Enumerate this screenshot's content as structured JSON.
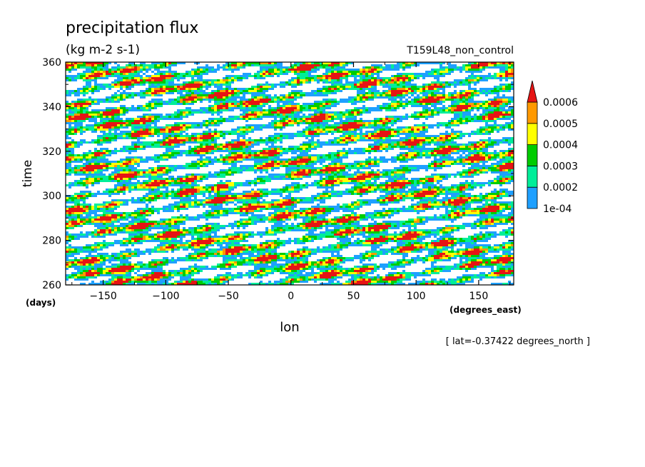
{
  "chart_data": {
    "type": "heatmap",
    "title": "precipitation flux",
    "subtitle": "(kg m-2 s-1)",
    "run_label": "T159L48_non_control",
    "xlabel": "lon",
    "x_units": "(degrees_east)",
    "ylabel": "time",
    "y_units": "(days)",
    "xlim": [
      -180,
      178
    ],
    "ylim": [
      260,
      360
    ],
    "x_ticks": [
      -150,
      -100,
      -50,
      0,
      50,
      100,
      150
    ],
    "y_ticks": [
      260,
      280,
      300,
      320,
      340,
      360
    ],
    "footnote": "[ lat=-0.37422 degrees_north ]",
    "colorbar": {
      "levels": [
        "1e-04",
        "0.0002",
        "0.0003",
        "0.0004",
        "0.0005",
        "0.0006"
      ],
      "colors": [
        "#1ea0ff",
        "#00ee99",
        "#00cc00",
        "#ffff00",
        "#ff9900",
        "#e61414"
      ],
      "extend": "max"
    }
  }
}
